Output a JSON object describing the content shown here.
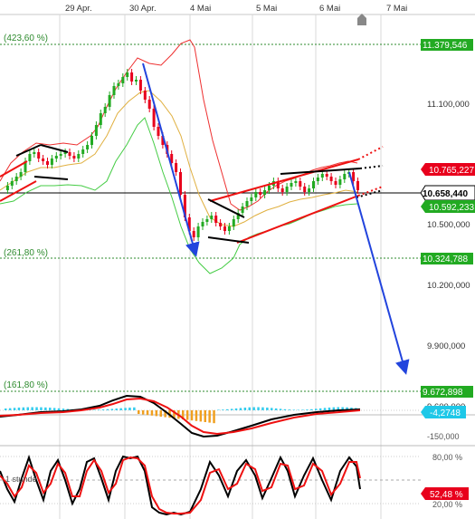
{
  "chart_data": {
    "type": "candlestick",
    "x_ticks": [
      "29 Apr.",
      "30 Apr.",
      "4 Mai",
      "5 Mai",
      "6 Mai",
      "7 Mai"
    ],
    "y_ticks": [
      "11.100,000",
      "10.500,000",
      "10.200,000",
      "9.900,000",
      "9.600,000"
    ],
    "ylim": [
      9540,
      11470
    ],
    "fib_levels": [
      {
        "label": "(423,60 %)",
        "value": 11379.546,
        "tag": "11.379,546"
      },
      {
        "label": "(261,80 %)",
        "value": 10324.788,
        "tag": "10.324,788"
      },
      {
        "label": "(161,80 %)",
        "value": 9672.898,
        "tag": "9.672,898"
      }
    ],
    "price_tags": [
      {
        "text": "10.765,227",
        "value": 10765.227,
        "color": "#e8001c"
      },
      {
        "text": "10.658,440",
        "value": 10658.44,
        "color": "#ffffff"
      },
      {
        "text": "10.592,233",
        "value": 10592.233,
        "color": "#22aa22"
      }
    ],
    "last_price": 10658.44,
    "macd": {
      "value_tag": "-4,2748",
      "tick": "-150,000",
      "tag_color": "#1ec8e8"
    },
    "stoch": {
      "value_tag": "52,48 %",
      "ticks": [
        "80,00 %",
        "20,00 %"
      ],
      "timeframe_label": "1 stunde"
    }
  },
  "colors": {
    "up": "#22aa22",
    "down": "#e8001c",
    "upper_band": "#ee3030",
    "middle_band": "#e0b040",
    "lower_band": "#44cc44",
    "arrow": "#2244dd",
    "fib": "#22aa22"
  },
  "icons": {
    "top_marker": "home-shape-icon"
  }
}
